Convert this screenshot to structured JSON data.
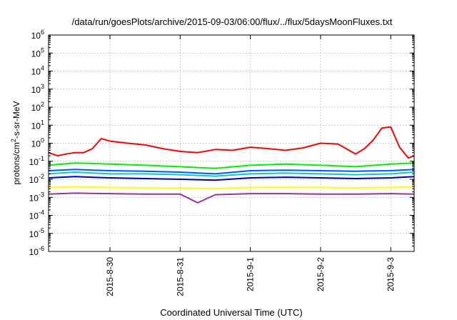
{
  "chart_data": {
    "type": "line",
    "title": "/data/run/goesPlots/archive/2015-09-03/06:00/flux/../flux/5daysMoonFluxes.txt",
    "xlabel": "Coordinated Universal Time (UTC)",
    "ylabel_parts": {
      "pre": "protons/cm",
      "sup": "2",
      "post": "-s-sr-MeV"
    },
    "yscale": "log",
    "ylim": [
      1e-06,
      1000000.0
    ],
    "xlim": [
      "2015-08-29 03:00",
      "2015-09-03 08:00"
    ],
    "grid": true,
    "x_ticks": [
      {
        "label": "2015-8-30",
        "date": "2015-08-30 00:00"
      },
      {
        "label": "2015-8-31",
        "date": "2015-08-31 00:00"
      },
      {
        "label": "2015-9-1",
        "date": "2015-09-01 00:00"
      },
      {
        "label": "2015-9-2",
        "date": "2015-09-02 00:00"
      },
      {
        "label": "2015-9-3",
        "date": "2015-09-03 00:00"
      }
    ],
    "y_ticks": [
      {
        "base": "10",
        "exp": "6"
      },
      {
        "base": "10",
        "exp": "5"
      },
      {
        "base": "10",
        "exp": "4"
      },
      {
        "base": "10",
        "exp": "3"
      },
      {
        "base": "10",
        "exp": "2"
      },
      {
        "base": "10",
        "exp": "1"
      },
      {
        "base": "10",
        "exp": "0"
      },
      {
        "base": "10",
        "exp": "-1"
      },
      {
        "base": "10",
        "exp": "-2"
      },
      {
        "base": "10",
        "exp": "-3"
      },
      {
        "base": "10",
        "exp": "-4"
      },
      {
        "base": "10",
        "exp": "-5"
      },
      {
        "base": "10",
        "exp": "-6"
      }
    ],
    "series": [
      {
        "color": "#ff0000",
        "x": [
          "2015-08-29 03:00",
          "2015-08-29 06:00",
          "2015-08-29 09:00",
          "2015-08-29 12:00",
          "2015-08-29 15:00",
          "2015-08-29 18:00",
          "2015-08-29 21:00",
          "2015-08-30 00:00",
          "2015-08-30 06:00",
          "2015-08-30 12:00",
          "2015-08-30 18:00",
          "2015-08-31 00:00",
          "2015-08-31 06:00",
          "2015-08-31 12:00",
          "2015-08-31 18:00",
          "2015-09-01 00:00",
          "2015-09-01 06:00",
          "2015-09-01 12:00",
          "2015-09-01 18:00",
          "2015-09-02 00:00",
          "2015-09-02 06:00",
          "2015-09-02 12:00",
          "2015-09-02 15:00",
          "2015-09-02 18:00",
          "2015-09-02 21:00",
          "2015-09-03 00:00",
          "2015-09-03 03:00",
          "2015-09-03 06:00",
          "2015-09-03 08:00"
        ],
        "y": [
          0.3,
          0.2,
          0.25,
          0.3,
          0.3,
          0.5,
          1.8,
          1.3,
          1.0,
          0.8,
          0.5,
          0.35,
          0.3,
          0.45,
          0.4,
          0.6,
          0.5,
          0.4,
          0.55,
          1.0,
          0.9,
          0.25,
          0.5,
          1.5,
          7,
          8,
          0.6,
          0.15,
          0.2
        ]
      },
      {
        "color": "#00ee00",
        "x": [
          "2015-08-29 03:00",
          "2015-08-29 12:00",
          "2015-08-30 00:00",
          "2015-08-30 12:00",
          "2015-08-31 00:00",
          "2015-08-31 12:00",
          "2015-09-01 00:00",
          "2015-09-01 12:00",
          "2015-09-02 00:00",
          "2015-09-02 12:00",
          "2015-09-03 00:00",
          "2015-09-03 08:00"
        ],
        "y": [
          0.06,
          0.08,
          0.07,
          0.06,
          0.05,
          0.04,
          0.06,
          0.07,
          0.06,
          0.05,
          0.07,
          0.08
        ]
      },
      {
        "color": "#00cccc",
        "x": [
          "2015-08-29 03:00",
          "2015-08-29 12:00",
          "2015-08-30 00:00",
          "2015-08-30 12:00",
          "2015-08-31 00:00",
          "2015-08-31 12:00",
          "2015-09-01 00:00",
          "2015-09-01 12:00",
          "2015-09-02 00:00",
          "2015-09-02 12:00",
          "2015-09-03 00:00",
          "2015-09-03 08:00"
        ],
        "y": [
          0.02,
          0.025,
          0.02,
          0.02,
          0.018,
          0.015,
          0.02,
          0.022,
          0.02,
          0.018,
          0.02,
          0.025
        ]
      },
      {
        "color": "#0055ff",
        "x": [
          "2015-08-29 03:00",
          "2015-08-29 12:00",
          "2015-08-30 00:00",
          "2015-08-30 12:00",
          "2015-08-31 00:00",
          "2015-08-31 12:00",
          "2015-09-01 00:00",
          "2015-09-01 12:00",
          "2015-09-02 00:00",
          "2015-09-02 12:00",
          "2015-09-03 00:00",
          "2015-09-03 08:00"
        ],
        "y": [
          0.03,
          0.035,
          0.03,
          0.028,
          0.025,
          0.02,
          0.03,
          0.032,
          0.03,
          0.028,
          0.03,
          0.035
        ]
      },
      {
        "color": "#0000aa",
        "x": [
          "2015-08-29 03:00",
          "2015-08-29 12:00",
          "2015-08-30 00:00",
          "2015-08-30 12:00",
          "2015-08-31 00:00",
          "2015-08-31 12:00",
          "2015-09-01 00:00",
          "2015-09-01 12:00",
          "2015-09-02 00:00",
          "2015-09-02 12:00",
          "2015-09-03 00:00",
          "2015-09-03 08:00"
        ],
        "y": [
          0.012,
          0.014,
          0.012,
          0.011,
          0.01,
          0.009,
          0.012,
          0.013,
          0.012,
          0.011,
          0.012,
          0.014
        ]
      },
      {
        "color": "#ffff00",
        "x": [
          "2015-08-29 03:00",
          "2015-08-29 12:00",
          "2015-08-30 00:00",
          "2015-08-30 12:00",
          "2015-08-31 00:00",
          "2015-08-31 12:00",
          "2015-09-01 00:00",
          "2015-09-01 12:00",
          "2015-09-02 00:00",
          "2015-09-02 12:00",
          "2015-09-03 00:00",
          "2015-09-03 08:00"
        ],
        "y": [
          0.0035,
          0.0038,
          0.0035,
          0.0033,
          0.0032,
          0.003,
          0.0035,
          0.0036,
          0.0035,
          0.0033,
          0.0035,
          0.0038
        ]
      },
      {
        "color": "#993399",
        "x": [
          "2015-08-29 03:00",
          "2015-08-29 12:00",
          "2015-08-30 00:00",
          "2015-08-30 12:00",
          "2015-08-31 00:00",
          "2015-08-31 06:00",
          "2015-08-31 12:00",
          "2015-09-01 00:00",
          "2015-09-01 12:00",
          "2015-09-02 00:00",
          "2015-09-02 12:00",
          "2015-09-03 00:00",
          "2015-09-03 08:00"
        ],
        "y": [
          0.0015,
          0.0017,
          0.0016,
          0.0015,
          0.0015,
          0.0005,
          0.0014,
          0.0016,
          0.0016,
          0.0015,
          0.0015,
          0.0016,
          0.0015
        ]
      }
    ]
  }
}
